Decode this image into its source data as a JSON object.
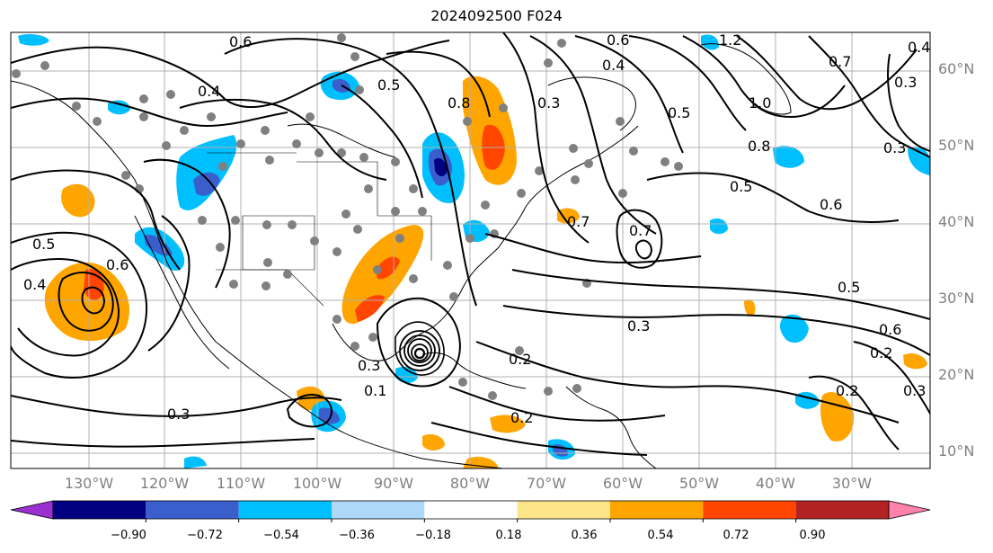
{
  "title": "2024092500 F024",
  "latitude_labels": [
    "60°N",
    "50°N",
    "40°N",
    "30°N",
    "20°N",
    "10°N"
  ],
  "longitude_labels": [
    "130°W",
    "120°W",
    "110°W",
    "100°W",
    "90°W",
    "80°W",
    "70°W",
    "60°W",
    "50°W",
    "40°W",
    "30°W"
  ],
  "colorbar": {
    "tick_labels": [
      "−0.90",
      "−0.72",
      "−0.54",
      "−0.36",
      "−0.18",
      "0.18",
      "0.36",
      "0.54",
      "0.72",
      "0.90"
    ],
    "colors": [
      "#9b30d0",
      "#000080",
      "#3a5fcd",
      "#00bfff",
      "#add8f7",
      "#ffffff",
      "#fde68a",
      "#ffa500",
      "#ff4500",
      "#b22222",
      "#ff82ab"
    ]
  },
  "contour_labels": [
    "0.6",
    "0.5",
    "0.4",
    "0.3",
    "0.2",
    "0.7",
    "0.8",
    "1.0",
    "1.2",
    "0.5",
    "0.6",
    "0.7",
    "0.3",
    "0.4",
    "0.8",
    "0.5",
    "0.6",
    "0.3",
    "0.2",
    "0.3",
    "0.4",
    "0.5",
    "0.3",
    "0.2",
    "0.3",
    "0.1",
    "0.6",
    "0.5",
    "0.4",
    "0.6",
    "0.7",
    "0.3",
    "0.2"
  ],
  "legend_colors": {
    "contour": "#000000",
    "station_dot": "#808080",
    "grid": "#b0b0b0"
  }
}
